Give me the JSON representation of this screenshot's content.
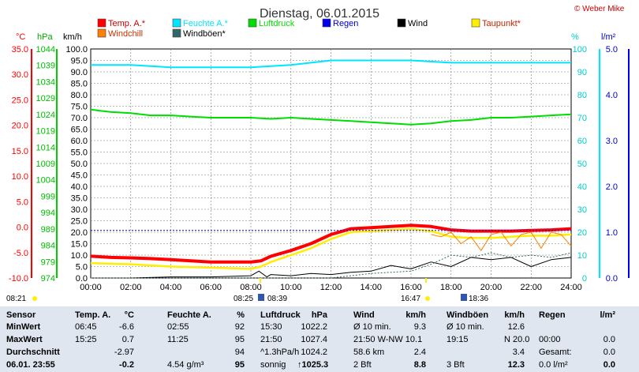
{
  "title": "Dienstag, 06.01.2015",
  "copyright": "© Weber Mike",
  "legend": [
    {
      "label": "Temp. A.*",
      "color": "#ff0000"
    },
    {
      "label": "Feuchte A.*",
      "color": "#00e5ff"
    },
    {
      "label": "Luftdruck",
      "color": "#00dd00"
    },
    {
      "label": "Regen",
      "color": "#0000ee"
    },
    {
      "label": "Wind",
      "color": "#000000"
    },
    {
      "label": "Taupunkt*",
      "color": "#ffee00"
    },
    {
      "label": "Windchill",
      "color": "#ff7f00"
    },
    {
      "label": "Windböen*",
      "color": "#336666"
    }
  ],
  "axis_units": {
    "temp": "°C",
    "pressure": "hPa",
    "wind": "km/h",
    "humidity": "%",
    "rain": "l/m²"
  },
  "chart_data": {
    "type": "line",
    "x_ticks": [
      "00:00",
      "02:00",
      "04:00",
      "06:00",
      "08:00",
      "10:00",
      "12:00",
      "14:00",
      "16:00",
      "18:00",
      "20:00",
      "22:00",
      "24:00"
    ],
    "xlim": [
      0,
      24
    ],
    "temp_ticks": [
      "35.0",
      "30.0",
      "25.0",
      "20.0",
      "15.0",
      "10.0",
      "5.0",
      "0.0",
      "-5.0",
      "-10.0"
    ],
    "pressure_ticks": [
      "1044",
      "1039",
      "1034",
      "1029",
      "1024",
      "1019",
      "1014",
      "1009",
      "1004",
      "999",
      "994",
      "989",
      "984",
      "979",
      "974"
    ],
    "wind_ticks": [
      "100.0",
      "95.0",
      "90.0",
      "85.0",
      "80.0",
      "75.0",
      "70.0",
      "65.0",
      "60.0",
      "55.0",
      "50.0",
      "45.0",
      "40.0",
      "35.0",
      "30.0",
      "25.0",
      "20.0",
      "15.0",
      "10.0",
      "5.0",
      "0.0"
    ],
    "humidity_ticks": [
      "100",
      "90",
      "80",
      "70",
      "60",
      "50",
      "40",
      "30",
      "20",
      "10",
      "0"
    ],
    "rain_ticks": [
      "5.0",
      "4.0",
      "3.0",
      "2.0",
      "1.0",
      "0.0"
    ],
    "wind_ylim": [
      0,
      100
    ],
    "series": [
      {
        "name": "Temp. A.*",
        "color": "#ff0000",
        "x": [
          0,
          1,
          2,
          3,
          4,
          5,
          6,
          7,
          8,
          8.5,
          9,
          10,
          11,
          12,
          13,
          14,
          15,
          16,
          17,
          18,
          19,
          20,
          21,
          22,
          23,
          24
        ],
        "y": [
          9.5,
          9,
          8.8,
          8.5,
          8,
          7.5,
          7,
          7,
          7,
          7.5,
          9.5,
          12,
          15,
          19,
          21.5,
          22,
          22.5,
          23,
          22.5,
          21,
          20.5,
          20.5,
          20.5,
          20.8,
          21,
          21.5
        ]
      },
      {
        "name": "Taupunkt*",
        "color": "#ffee00",
        "x": [
          0,
          2,
          4,
          6,
          8,
          8.5,
          9,
          10,
          11,
          12,
          13,
          14,
          15,
          16,
          17,
          18,
          19,
          20,
          21,
          22,
          23,
          24
        ],
        "y": [
          6.5,
          6,
          5,
          4.5,
          4,
          5,
          7,
          10,
          13,
          17,
          20,
          20.5,
          21,
          21.5,
          20.5,
          18,
          17.5,
          17.5,
          18,
          18.5,
          18.5,
          19
        ]
      },
      {
        "name": "Feuchte A.*",
        "color": "#00e5ff",
        "x": [
          0,
          2,
          3,
          4,
          6,
          8,
          10,
          11,
          12,
          14,
          16,
          18,
          20,
          22,
          24
        ],
        "y": [
          93,
          93,
          92.5,
          92,
          92,
          92,
          93,
          94,
          95,
          95,
          95,
          94,
          94,
          94,
          94
        ]
      },
      {
        "name": "Luftdruck",
        "color": "#00dd00",
        "x": [
          0,
          1,
          2,
          3,
          4,
          5,
          6,
          7,
          8,
          9,
          10,
          11,
          12,
          13,
          14,
          15,
          16,
          17,
          18,
          19,
          20,
          21,
          22,
          23,
          24
        ],
        "y": [
          73.5,
          72.5,
          72,
          71,
          71,
          70.5,
          70,
          70,
          70,
          69.5,
          70,
          69.5,
          69,
          68.5,
          68,
          67.5,
          67,
          67.5,
          68.5,
          69,
          70,
          70,
          70.5,
          71,
          71.5
        ]
      },
      {
        "name": "Wind",
        "color": "#000000",
        "x": [
          0,
          2,
          4,
          6,
          8,
          8.4,
          8.8,
          9,
          10,
          11,
          12,
          13,
          14,
          15,
          16,
          17,
          18,
          19,
          20,
          21,
          22,
          23,
          24
        ],
        "y": [
          0,
          0,
          0.5,
          0.5,
          1,
          3,
          0.5,
          1.5,
          1,
          2,
          1.5,
          2.5,
          3,
          5.5,
          4,
          7,
          5,
          9,
          8,
          9,
          5,
          8,
          9
        ]
      },
      {
        "name": "Windböen*",
        "color": "#336666",
        "x": [
          0,
          8,
          9,
          12,
          14,
          16,
          17,
          18,
          19,
          20,
          21,
          22,
          23,
          24
        ],
        "y": [
          0,
          0,
          0,
          0,
          2,
          3,
          6,
          10,
          9,
          11,
          9,
          10,
          9,
          11
        ]
      },
      {
        "name": "Windchill",
        "color": "#ff7f00",
        "x": [
          17,
          17.5,
          18,
          18.5,
          19,
          19.5,
          20,
          20.5,
          21,
          21.5,
          22,
          22.5,
          23,
          23.5,
          24
        ],
        "y": [
          19,
          18,
          20,
          15,
          18,
          12,
          19,
          20,
          14,
          19,
          20,
          13,
          20,
          19,
          14
        ]
      },
      {
        "name": "Regen",
        "color": "#0000ee",
        "x": [
          0,
          24
        ],
        "y": [
          20.8,
          20.8
        ]
      }
    ]
  },
  "marker_times": {
    "sunrise": "08:25",
    "sunrise2": "08:39",
    "noon": "16:47",
    "sunset": "18:36",
    "left": "08:21"
  },
  "table": {
    "headers": [
      "Sensor",
      "Temp. A.",
      "°C",
      "Feuchte A.",
      "%",
      "Luftdruck",
      "hPa",
      "Wind",
      "km/h",
      "Windböen",
      "km/h",
      "Regen",
      "l/m²"
    ],
    "rows": [
      {
        "label": "MinWert",
        "c1": "06:45",
        "c2": "-6.6",
        "c3": "02:55",
        "c4": "92",
        "c5": "15:30",
        "c6": "1022.2",
        "c7": "Ø 10 min.",
        "c8": "9.3",
        "c9": "Ø 10 min.",
        "c10": "12.6",
        "c11": "",
        "c12": ""
      },
      {
        "label": "MaxWert",
        "c1": "15:25",
        "c2": "0.7",
        "c3": "11:25",
        "c4": "95",
        "c5": "21:50",
        "c6": "1027.4",
        "c7": "21:50   W-NW 10.1",
        "c8": "",
        "c9": "19:15",
        "c10": "N 20.0",
        "c11": "00:00",
        "c12": "0.0"
      },
      {
        "label": "Durchschnitt",
        "c1": "",
        "c2": "-2.97",
        "c3": "",
        "c4": "94",
        "c5": "^1.3hPa/h",
        "c6": "1024.2",
        "c7": "58.6 km",
        "c8": "2.4",
        "c9": "",
        "c10": "3.4",
        "c11": "Gesamt:",
        "c12": "0.0"
      },
      {
        "label": "06.01. 23:55",
        "c1": "",
        "c2": "-0.2",
        "c3": "4.54 g/m³",
        "c4": "95",
        "c5": "sonnig",
        "c6": "↑1025.3",
        "c7": "2 Bft",
        "c8": "8.8",
        "c9": "3 Bft",
        "c10": "12.3",
        "c11": "0.0 l/m²",
        "c12": "0.0"
      }
    ]
  }
}
